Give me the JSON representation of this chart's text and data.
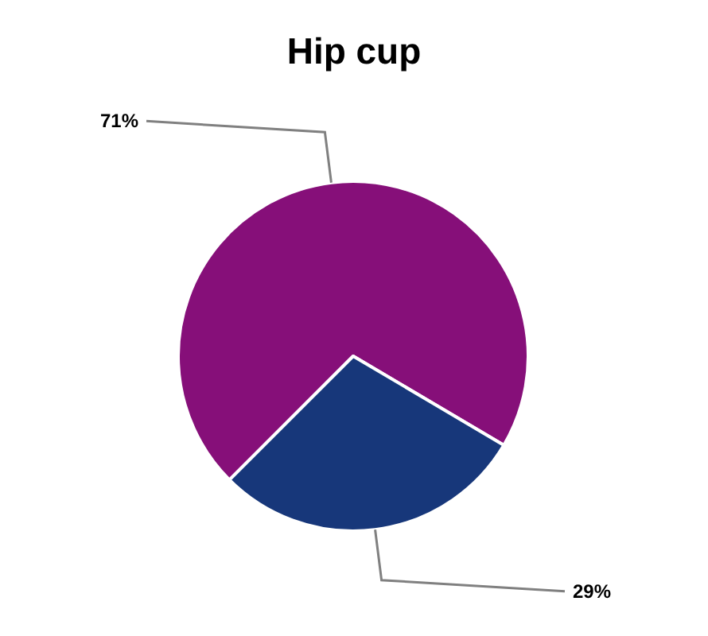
{
  "chart_data": {
    "type": "pie",
    "title": "Hip cup",
    "categories": [
      null,
      null
    ],
    "values": [
      71,
      29
    ],
    "colors": [
      "#860f79",
      "#17377a"
    ],
    "value_labels": [
      "71%",
      "29%"
    ]
  }
}
